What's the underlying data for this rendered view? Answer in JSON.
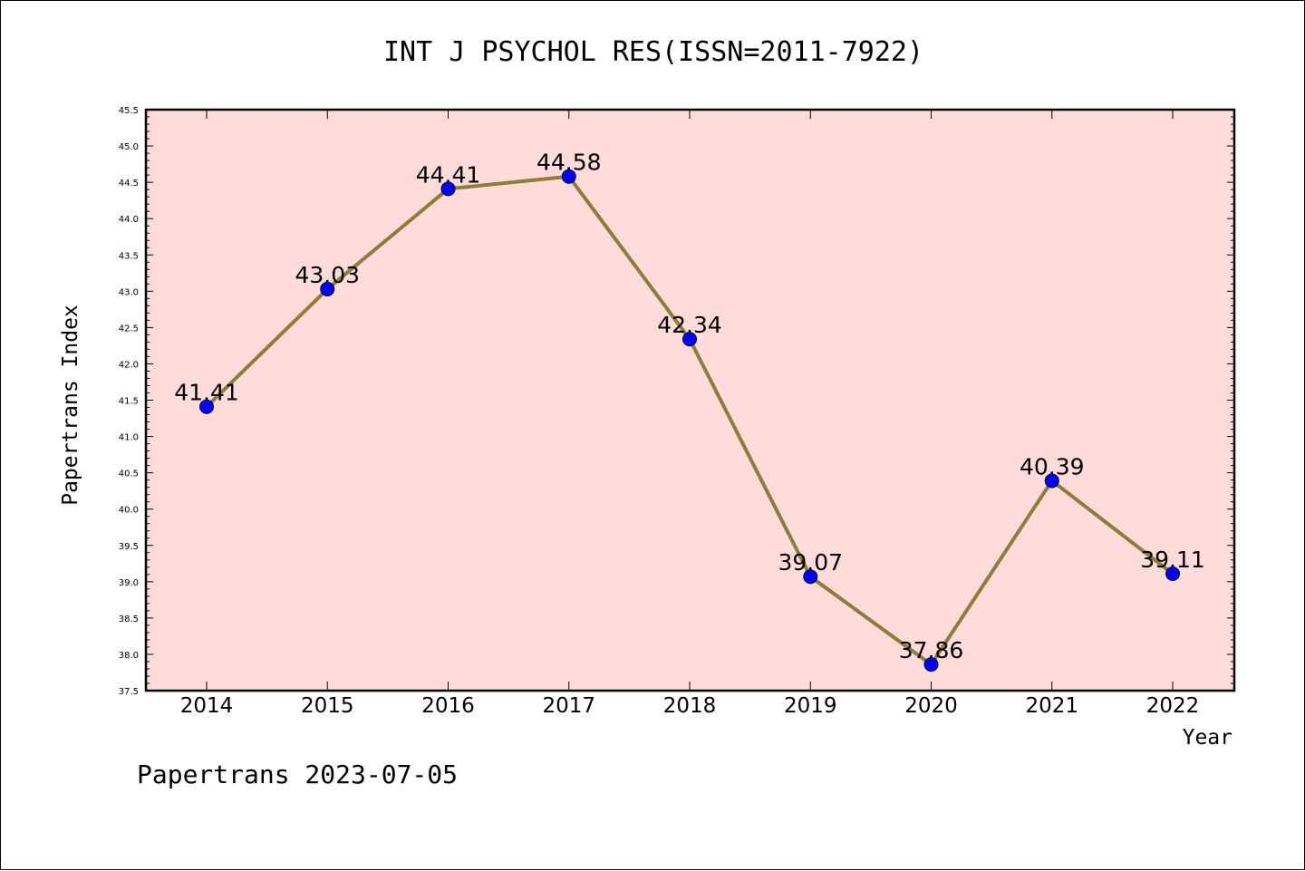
{
  "chart_data": {
    "type": "line",
    "title": "INT J PSYCHOL RES(ISSN=2011-7922)",
    "xlabel": "Year",
    "ylabel": "Papertrans Index",
    "categories": [
      "2014",
      "2015",
      "2016",
      "2017",
      "2018",
      "2019",
      "2020",
      "2021",
      "2022"
    ],
    "series": [
      {
        "values": [
          41.41,
          43.03,
          44.41,
          44.58,
          42.34,
          39.07,
          37.86,
          40.39,
          39.11
        ],
        "labels": [
          "41.41",
          "43.03",
          "44.41",
          "44.58",
          "42.34",
          "39.07",
          "37.86",
          "40.39",
          "39.11"
        ]
      }
    ],
    "ylim": [
      37.5,
      45.5
    ],
    "yticks": [
      "37.5",
      "38.0",
      "38.5",
      "39.0",
      "39.5",
      "40.0",
      "40.5",
      "41.0",
      "41.5",
      "42.0",
      "42.5",
      "43.0",
      "43.5",
      "44.0",
      "44.5",
      "45.0",
      "45.5"
    ],
    "grid": false,
    "colors": {
      "plot_background": "#ffdcd9",
      "line": "#8b7d3a",
      "marker": "#0000ff"
    }
  },
  "footer": "Papertrans 2023-07-05"
}
